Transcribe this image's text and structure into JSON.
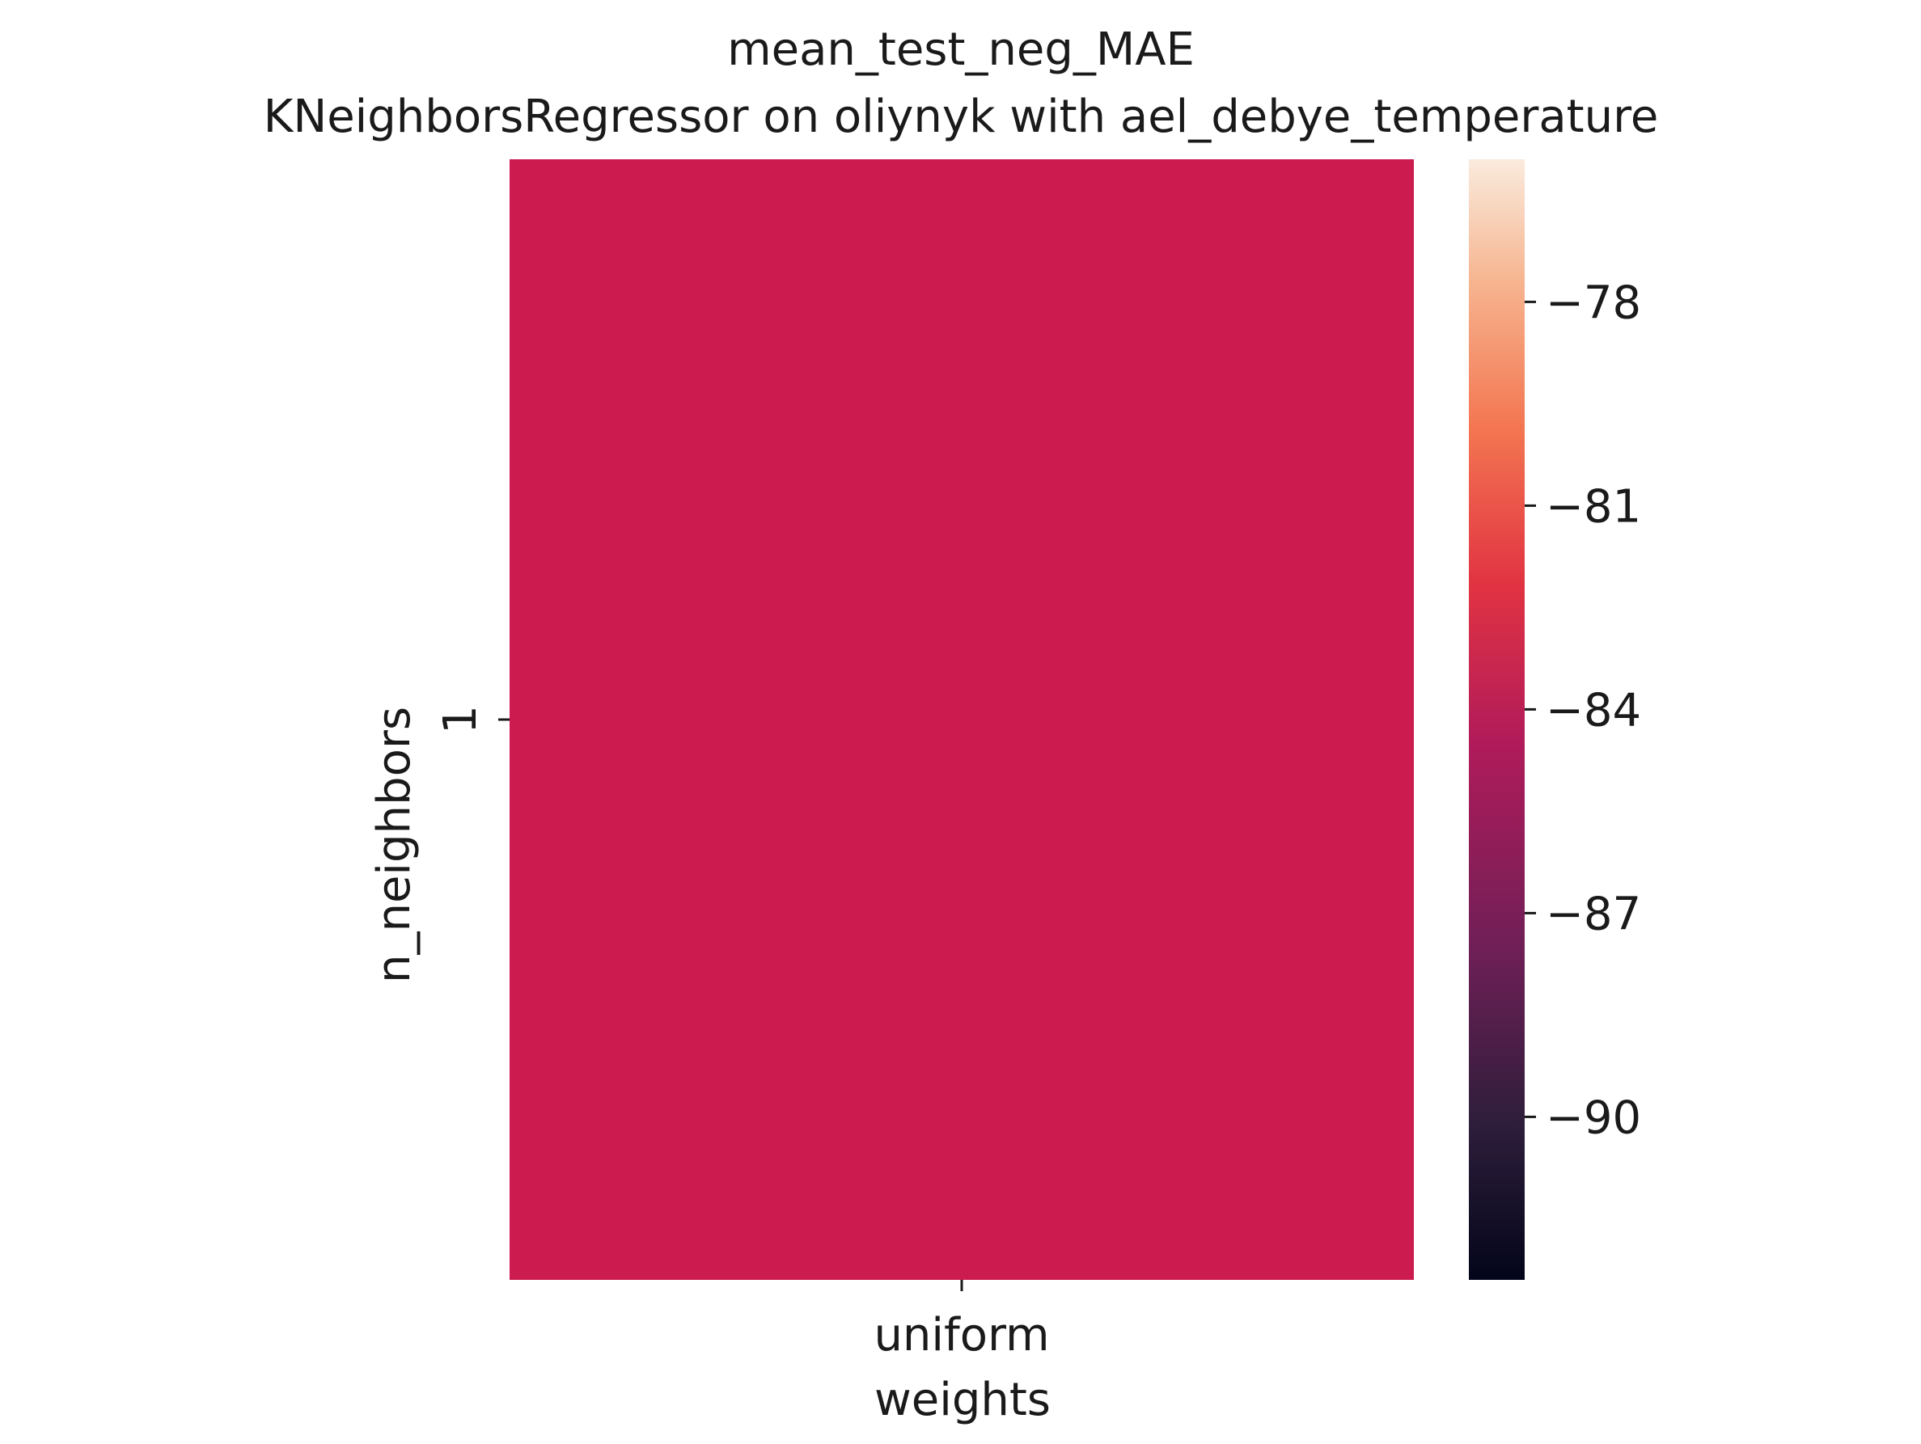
{
  "chart_data": {
    "type": "heatmap",
    "title": "mean_test_neg_MAE",
    "subtitle": "KNeighborsRegressor on oliynyk with ael_debye_temperature",
    "xlabel": "weights",
    "ylabel": "n_neighbors",
    "x_categories": [
      "uniform"
    ],
    "y_categories": [
      "1"
    ],
    "values": [
      [
        -84.2
      ]
    ],
    "colorbar": {
      "range": [
        -92.4,
        -75.9
      ],
      "ticks": [
        -78,
        -81,
        -84,
        -87,
        -90
      ],
      "tick_labels": [
        "−78",
        "−81",
        "−84",
        "−87",
        "−90"
      ],
      "colormap": "rocket",
      "stops": [
        "#03051a",
        "#2e1e3b",
        "#711f57",
        "#b11b5a",
        "#e13342",
        "#f37651",
        "#f6b48f",
        "#faebdd"
      ]
    },
    "cell_color": "#cb1b4f",
    "grid": false
  }
}
